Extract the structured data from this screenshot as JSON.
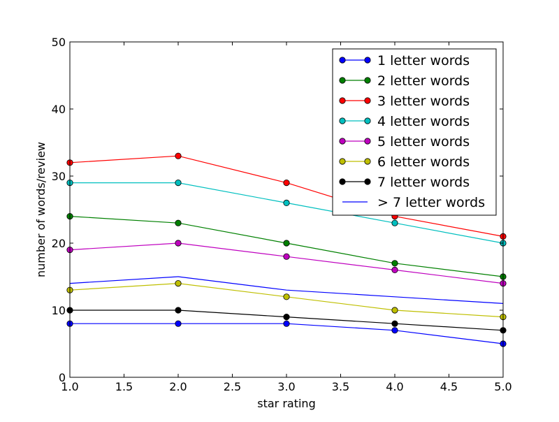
{
  "chart_data": {
    "type": "line",
    "title": "",
    "xlabel": "star rating",
    "ylabel": "number of words/review",
    "xlim": [
      1.0,
      5.0
    ],
    "ylim": [
      0,
      50
    ],
    "x_ticks": [
      "1.0",
      "1.5",
      "2.0",
      "2.5",
      "3.0",
      "3.5",
      "4.0",
      "4.5",
      "5.0"
    ],
    "y_ticks": [
      "0",
      "10",
      "20",
      "30",
      "40",
      "50"
    ],
    "grid": false,
    "legend_position": "top-right",
    "x": [
      1,
      2,
      3,
      4,
      5
    ],
    "series": [
      {
        "name": "1 letter words",
        "color": "#0000ff",
        "marker": true,
        "values": [
          8,
          8,
          8,
          7,
          5
        ]
      },
      {
        "name": "2 letter words",
        "color": "#008000",
        "marker": true,
        "values": [
          24,
          23,
          20,
          17,
          15
        ]
      },
      {
        "name": "3 letter words",
        "color": "#ff0000",
        "marker": true,
        "values": [
          32,
          33,
          29,
          24,
          21
        ]
      },
      {
        "name": "4 letter words",
        "color": "#00bfbf",
        "marker": true,
        "values": [
          29,
          29,
          26,
          23,
          20
        ]
      },
      {
        "name": "5 letter words",
        "color": "#bf00bf",
        "marker": true,
        "values": [
          19,
          20,
          18,
          16,
          14
        ]
      },
      {
        "name": "6 letter words",
        "color": "#bfbf00",
        "marker": true,
        "values": [
          13,
          14,
          12,
          10,
          9
        ]
      },
      {
        "name": "7 letter words",
        "color": "#000000",
        "marker": true,
        "values": [
          10,
          10,
          9,
          8,
          7
        ]
      },
      {
        "name": "> 7 letter words",
        "color": "#0000ff",
        "marker": false,
        "values": [
          14,
          15,
          13,
          12,
          11
        ]
      }
    ]
  }
}
